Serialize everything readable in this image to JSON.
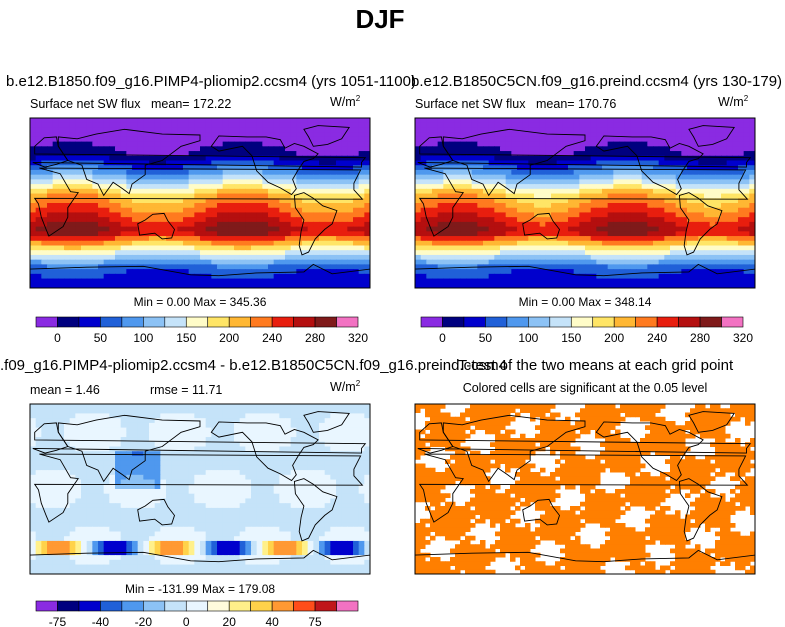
{
  "page_title": "DJF",
  "units_base": "W/m",
  "units_exp": "2",
  "panels": {
    "a": {
      "case_title": "b.e12.B1850.f09_g16.PIMP4-pliomip2.ccsm4 (yrs 1051-1100)",
      "subtitle": "Surface net SW flux",
      "mean_text": "mean= 172.22",
      "minmax_text": "Min =    0.00 Max = 345.36"
    },
    "b": {
      "case_title": "b.e12.B1850C5CN.f09_g16.preind.ccsm4 (yrs 130-179)",
      "subtitle": "Surface net SW flux",
      "mean_text": "mean= 170.76",
      "minmax_text": "Min =    0.00 Max = 348.14"
    },
    "c": {
      "case_title": ".f09_g16.PIMP4-pliomip2.ccsm4 - b.e12.B1850C5CN.f09_g16.preind.ccsm4",
      "mean_text": "mean =    1.46",
      "rmse_text": "rmse =   11.71",
      "minmax_text": "Min = -131.99 Max = 179.08"
    },
    "d": {
      "title": "T-test of the two means at each grid point",
      "subtitle": "Colored cells are significant at the 0.05 level"
    }
  },
  "colors": {
    "abs_scale": [
      "#8a2be2",
      "#00007f",
      "#0000cd",
      "#2060d8",
      "#4f98ee",
      "#8cc2f5",
      "#c5e3f9",
      "#fffcc8",
      "#ffe566",
      "#ffb733",
      "#ff7a1f",
      "#e81e0e",
      "#b40f0f",
      "#7f1a1a",
      "#f272c2"
    ],
    "diff_scale": [
      "#8a2be2",
      "#00007f",
      "#0000cd",
      "#2060d8",
      "#4f98ee",
      "#8cc2f5",
      "#c5e3f9",
      "#e9f6ff",
      "#fffbdc",
      "#fff08a",
      "#ffd24a",
      "#ff9933",
      "#ff4d1a",
      "#c0161a",
      "#f272c2"
    ],
    "ttest": "#ff7f00",
    "land": "#000000"
  },
  "chart_data": [
    {
      "type": "heatmap",
      "panel": "a",
      "title": "b.e12.B1850.f09_g16.PIMP4-pliomip2.ccsm4 (yrs 1051-1100)",
      "variable": "Surface net SW flux",
      "units": "W/m2",
      "mean": 172.22,
      "min": 0.0,
      "max": 345.36,
      "colorbar_levels": [
        0,
        25,
        50,
        75,
        100,
        125,
        150,
        175,
        200,
        220,
        240,
        260,
        280,
        300,
        320
      ],
      "colorbar_ticklabels": [
        "0",
        "50",
        "100",
        "150",
        "200",
        "240",
        "280",
        "320"
      ],
      "latitude_profile_Wm2": {
        "lat": [
          90,
          70,
          50,
          30,
          10,
          -10,
          -30,
          -50,
          -70,
          -90
        ],
        "value": [
          0,
          5,
          35,
          120,
          220,
          260,
          300,
          190,
          80,
          60
        ]
      }
    },
    {
      "type": "heatmap",
      "panel": "b",
      "title": "b.e12.B1850C5CN.f09_g16.preind.ccsm4 (yrs 130-179)",
      "variable": "Surface net SW flux",
      "units": "W/m2",
      "mean": 170.76,
      "min": 0.0,
      "max": 348.14,
      "colorbar_levels": [
        0,
        25,
        50,
        75,
        100,
        125,
        150,
        175,
        200,
        220,
        240,
        260,
        280,
        300,
        320
      ],
      "colorbar_ticklabels": [
        "0",
        "50",
        "100",
        "150",
        "200",
        "240",
        "280",
        "320"
      ],
      "latitude_profile_Wm2": {
        "lat": [
          90,
          70,
          50,
          30,
          10,
          -10,
          -30,
          -50,
          -70,
          -90
        ],
        "value": [
          0,
          5,
          35,
          118,
          218,
          258,
          298,
          188,
          80,
          60
        ]
      }
    },
    {
      "type": "heatmap",
      "panel": "c",
      "title": ".f09_g16.PIMP4-pliomip2.ccsm4 - b.e12.B1850C5CN.f09_g16.preind.ccsm4",
      "units": "W/m2",
      "mean": 1.46,
      "rmse": 11.71,
      "min": -131.99,
      "max": 179.08,
      "colorbar_levels": [
        -100,
        -75,
        -50,
        -40,
        -30,
        -20,
        -10,
        0,
        10,
        20,
        30,
        40,
        50,
        75,
        100
      ],
      "colorbar_ticklabels": [
        "-75",
        "-40",
        "-20",
        "0",
        "20",
        "40",
        "75"
      ]
    },
    {
      "type": "heatmap",
      "panel": "d",
      "title": "T-test of the two means at each grid point",
      "subtitle": "Colored cells are significant at the 0.05 level",
      "significance_level": 0.05
    }
  ]
}
